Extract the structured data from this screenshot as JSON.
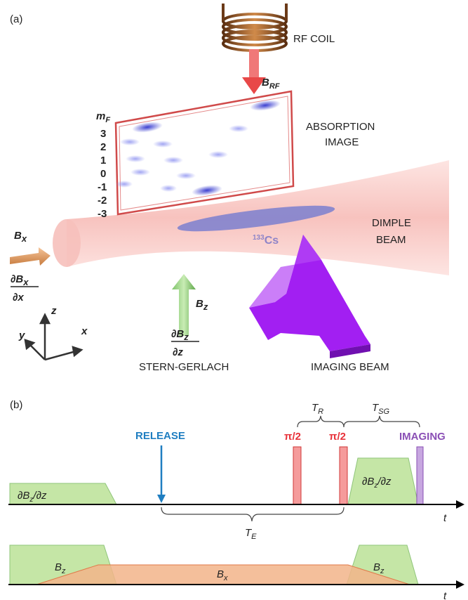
{
  "panel_a": {
    "label": "(a)",
    "rf_coil": "RF COIL",
    "b_rf_main": "B",
    "b_rf_sub": "RF",
    "mf_main": "m",
    "mf_sub": "F",
    "mf_levels": [
      "3",
      "2",
      "1",
      "0",
      "-1",
      "-2",
      "-3"
    ],
    "absorption_line1": "ABSORPTION",
    "absorption_line2": "IMAGE",
    "dimple_line1": "DIMPLE",
    "dimple_line2": "BEAM",
    "cs_sup": "133",
    "cs": "Cs",
    "bx_main": "B",
    "bx_sub": "x",
    "grad_x_num_main": "∂B",
    "grad_x_num_sub": "x",
    "grad_x_den": "∂x",
    "bz_main": "B",
    "bz_sub": "z",
    "grad_z_num_main": "∂B",
    "grad_z_num_sub": "z",
    "grad_z_den": "∂z",
    "stern_gerlach": "STERN-GERLACH",
    "imaging_beam": "IMAGING BEAM",
    "axis_z": "z",
    "axis_y": "y",
    "axis_x": "x"
  },
  "panel_b": {
    "label": "(b)",
    "release": "RELEASE",
    "pi1": "π/2",
    "pi2": "π/2",
    "imaging": "IMAGING",
    "tr_main": "T",
    "tr_sub": "R",
    "tsg_main": "T",
    "tsg_sub": "SG",
    "te_main": "T",
    "te_sub": "E",
    "t1": "t",
    "t2": "t",
    "grad1_a": "∂B",
    "grad1_a_sub": "z",
    "grad1_b": "/∂z",
    "grad2_a": "∂B",
    "grad2_a_sub": "z",
    "grad2_b": "/∂z",
    "bz1_main": "B",
    "bz1_sub": "z",
    "bz2_main": "B",
    "bz2_sub": "z",
    "bx_main": "B",
    "bx_sub": "x"
  },
  "colors": {
    "release": "#1f7ec1",
    "pulse": "#e8323a",
    "imaging": "#8a4fb5",
    "green_fill": "#c5e6a6",
    "orange_fill": "#f2b48a",
    "beam": "#f9c6c2",
    "arrow_purple": "#a020f0"
  }
}
